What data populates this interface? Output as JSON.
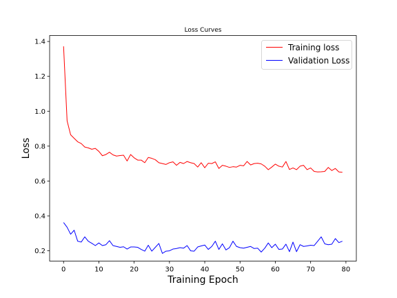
{
  "chart_data": {
    "type": "line",
    "title": "Loss Curves",
    "xlabel": "Training Epoch",
    "ylabel": "Loss",
    "xlim": [
      -3.95,
      82.95
    ],
    "ylim": [
      0.141,
      1.434
    ],
    "xticks": [
      0,
      10,
      20,
      30,
      40,
      50,
      60,
      70,
      80
    ],
    "yticks": [
      0.2,
      0.4,
      0.6,
      0.8,
      1.0,
      1.2,
      1.4
    ],
    "ytick_labels": [
      "0.2",
      "0.4",
      "0.6",
      "0.8",
      "1.0",
      "1.2",
      "1.4"
    ],
    "grid": false,
    "legend_position": "top-right",
    "x": [
      0,
      1,
      2,
      3,
      4,
      5,
      6,
      7,
      8,
      9,
      10,
      11,
      12,
      13,
      14,
      15,
      16,
      17,
      18,
      19,
      20,
      21,
      22,
      23,
      24,
      25,
      26,
      27,
      28,
      29,
      30,
      31,
      32,
      33,
      34,
      35,
      36,
      37,
      38,
      39,
      40,
      41,
      42,
      43,
      44,
      45,
      46,
      47,
      48,
      49,
      50,
      51,
      52,
      53,
      54,
      55,
      56,
      57,
      58,
      59,
      60,
      61,
      62,
      63,
      64,
      65,
      66,
      67,
      68,
      69,
      70,
      71,
      72,
      73,
      74,
      75,
      76,
      77,
      78,
      79
    ],
    "series": [
      {
        "name": "Training loss",
        "color": "#ff0000",
        "values": [
          1.372,
          0.945,
          0.865,
          0.845,
          0.825,
          0.815,
          0.795,
          0.79,
          0.782,
          0.787,
          0.77,
          0.745,
          0.752,
          0.765,
          0.75,
          0.743,
          0.746,
          0.748,
          0.715,
          0.752,
          0.733,
          0.72,
          0.72,
          0.705,
          0.735,
          0.73,
          0.722,
          0.705,
          0.7,
          0.695,
          0.705,
          0.71,
          0.69,
          0.707,
          0.7,
          0.712,
          0.705,
          0.7,
          0.68,
          0.705,
          0.676,
          0.702,
          0.7,
          0.71,
          0.672,
          0.69,
          0.685,
          0.678,
          0.682,
          0.68,
          0.69,
          0.687,
          0.712,
          0.692,
          0.7,
          0.702,
          0.698,
          0.685,
          0.665,
          0.68,
          0.697,
          0.685,
          0.68,
          0.712,
          0.666,
          0.675,
          0.665,
          0.685,
          0.69,
          0.665,
          0.675,
          0.655,
          0.652,
          0.653,
          0.655,
          0.678,
          0.66,
          0.672,
          0.652,
          0.65
        ]
      },
      {
        "name": "Validation Loss",
        "color": "#0000ff",
        "values": [
          0.362,
          0.335,
          0.295,
          0.318,
          0.255,
          0.25,
          0.28,
          0.255,
          0.243,
          0.23,
          0.245,
          0.23,
          0.235,
          0.258,
          0.23,
          0.225,
          0.22,
          0.223,
          0.21,
          0.222,
          0.222,
          0.22,
          0.208,
          0.198,
          0.232,
          0.198,
          0.22,
          0.242,
          0.185,
          0.198,
          0.2,
          0.21,
          0.213,
          0.218,
          0.215,
          0.23,
          0.2,
          0.198,
          0.222,
          0.228,
          0.233,
          0.208,
          0.225,
          0.255,
          0.208,
          0.24,
          0.205,
          0.218,
          0.255,
          0.225,
          0.218,
          0.215,
          0.22,
          0.225,
          0.213,
          0.215,
          0.193,
          0.215,
          0.245,
          0.218,
          0.238,
          0.208,
          0.21,
          0.238,
          0.195,
          0.25,
          0.195,
          0.235,
          0.225,
          0.228,
          0.232,
          0.23,
          0.255,
          0.28,
          0.24,
          0.235,
          0.238,
          0.27,
          0.247,
          0.255
        ]
      }
    ]
  }
}
